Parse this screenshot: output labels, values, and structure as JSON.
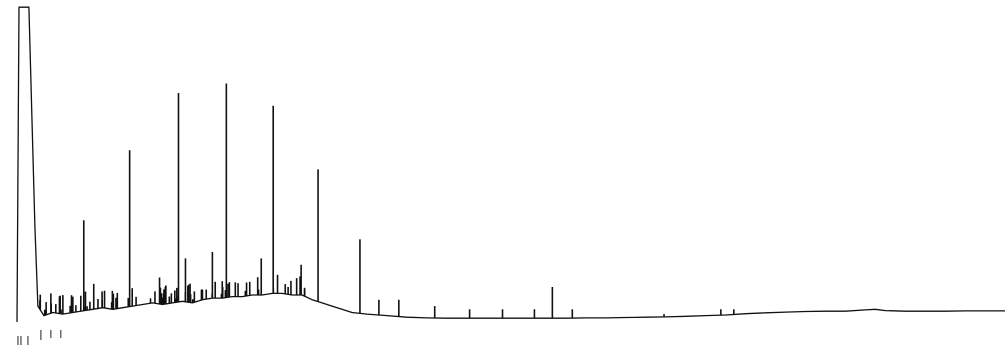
{
  "chart_data": {
    "type": "line",
    "title": "",
    "xlabel": "",
    "ylabel": "",
    "grid": false,
    "legend": "none",
    "xlim": [
      0,
      100
    ],
    "ylim": [
      0,
      100
    ],
    "series": [
      {
        "baseline_points": [
          [
            0.9,
            0
          ],
          [
            1.1,
            99
          ],
          [
            2.1,
            99
          ],
          [
            2.7,
            30
          ],
          [
            3.0,
            5
          ],
          [
            3.6,
            2
          ],
          [
            4.5,
            3
          ],
          [
            5.5,
            2.5
          ],
          [
            6.5,
            3
          ],
          [
            7.5,
            3.5
          ],
          [
            8.5,
            4
          ],
          [
            9.5,
            4.5
          ],
          [
            10.5,
            4
          ],
          [
            11.5,
            4.5
          ],
          [
            12.5,
            5
          ],
          [
            13.5,
            5.5
          ],
          [
            14.5,
            6
          ],
          [
            15.5,
            5.5
          ],
          [
            16.5,
            6
          ],
          [
            17.5,
            6.5
          ],
          [
            18.5,
            6
          ],
          [
            19.5,
            7
          ],
          [
            20.5,
            7.5
          ],
          [
            21.5,
            7.5
          ],
          [
            22.5,
            8
          ],
          [
            23.5,
            8
          ],
          [
            24.5,
            8.5
          ],
          [
            25.5,
            8.5
          ],
          [
            26.5,
            9
          ],
          [
            27.5,
            9
          ],
          [
            28.5,
            8.5
          ],
          [
            29.5,
            8.5
          ],
          [
            30.5,
            7
          ],
          [
            31.5,
            6
          ],
          [
            32.5,
            5
          ],
          [
            33.5,
            4
          ],
          [
            34.5,
            3
          ],
          [
            36,
            2.5
          ],
          [
            38,
            2
          ],
          [
            40,
            1.5
          ],
          [
            42,
            1.3
          ],
          [
            44,
            1.2
          ],
          [
            46,
            1.2
          ],
          [
            48,
            1.2
          ],
          [
            50,
            1.2
          ],
          [
            52,
            1.2
          ],
          [
            54,
            1.2
          ],
          [
            56,
            1.2
          ],
          [
            58,
            1.3
          ],
          [
            60,
            1.3
          ],
          [
            62,
            1.4
          ],
          [
            64,
            1.5
          ],
          [
            66,
            1.6
          ],
          [
            68,
            1.8
          ],
          [
            70,
            2.0
          ],
          [
            72,
            2.2
          ],
          [
            74,
            2.6
          ],
          [
            76,
            2.9
          ],
          [
            78,
            3.1
          ],
          [
            80,
            3.3
          ],
          [
            82,
            3.4
          ],
          [
            84,
            3.4
          ],
          [
            86,
            3.8
          ],
          [
            87,
            4.0
          ],
          [
            88,
            3.6
          ],
          [
            90,
            3.4
          ],
          [
            92,
            3.4
          ],
          [
            94,
            3.4
          ],
          [
            96,
            3.5
          ],
          [
            98,
            3.5
          ],
          [
            100,
            3.5
          ]
        ],
        "peaks": [
          {
            "x": 4.3,
            "y": 9
          },
          {
            "x": 7.6,
            "y": 32
          },
          {
            "x": 8.6,
            "y": 12
          },
          {
            "x": 12.2,
            "y": 54
          },
          {
            "x": 15.2,
            "y": 14
          },
          {
            "x": 17.1,
            "y": 72
          },
          {
            "x": 17.8,
            "y": 20
          },
          {
            "x": 20.5,
            "y": 22
          },
          {
            "x": 21.9,
            "y": 75
          },
          {
            "x": 25.4,
            "y": 20
          },
          {
            "x": 26.6,
            "y": 68
          },
          {
            "x": 29.4,
            "y": 18
          },
          {
            "x": 31.1,
            "y": 48
          },
          {
            "x": 35.3,
            "y": 26
          },
          {
            "x": 37.2,
            "y": 7
          },
          {
            "x": 39.2,
            "y": 7
          },
          {
            "x": 42.8,
            "y": 5
          },
          {
            "x": 46.3,
            "y": 4
          },
          {
            "x": 49.6,
            "y": 4
          },
          {
            "x": 52.8,
            "y": 4
          },
          {
            "x": 54.6,
            "y": 11
          },
          {
            "x": 56.6,
            "y": 4
          },
          {
            "x": 65.8,
            "y": 2.5
          },
          {
            "x": 71.5,
            "y": 4
          },
          {
            "x": 72.8,
            "y": 4
          }
        ]
      }
    ]
  }
}
